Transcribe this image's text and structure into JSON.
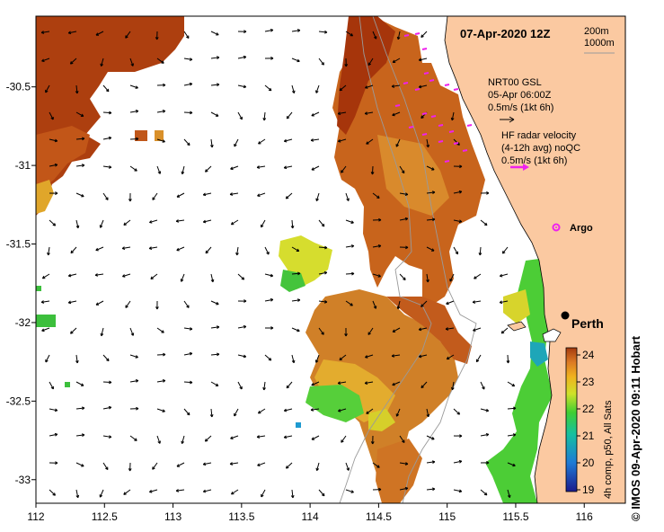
{
  "title": "07-Apr-2020 12Z",
  "depth_labels": [
    "200m",
    "1000m"
  ],
  "model_label": "NRT00 GSL",
  "model_time": "05-Apr 06:00Z",
  "model_scale": "0.5m/s (1kt 6h)",
  "radar_label_line1": "HF radar velocity",
  "radar_label_line2": "(4-12h avg) noQC",
  "radar_scale": "0.5m/s (1kt 6h)",
  "argo_label": "Argo",
  "city_label": "Perth",
  "colorbar_title": "4h comp, p50, All Sats",
  "credit": "© IMOS 09-Apr-2020 09:11 Hobart",
  "colors": {
    "land": "#fbc9a1",
    "warm": "#b0420c",
    "mid": "#d6822a",
    "cool": "#38c43a",
    "argo": "#ee22ee",
    "radar_arrow": "#ee22ee"
  },
  "chart_data": {
    "type": "heatmap",
    "variable": "sea surface temperature",
    "xlim": [
      112,
      116.3
    ],
    "ylim": [
      -33.15,
      -30.05
    ],
    "x_ticks": [
      112,
      112.5,
      113,
      113.5,
      114,
      114.5,
      115,
      115.5,
      116
    ],
    "x_tick_labels": [
      "112",
      "112.5",
      "113",
      "113.5",
      "114",
      "114.5",
      "115",
      "115.5",
      "116"
    ],
    "y_ticks": [
      -30.5,
      -31,
      -31.5,
      -32,
      -32.5,
      -33
    ],
    "y_tick_labels": [
      "-30.5",
      "-31",
      "-31.5",
      "-32",
      "-32.5",
      "-33"
    ],
    "colorbar": {
      "min": 19,
      "max": 24,
      "ticks": [
        19,
        20,
        21,
        22,
        23,
        24
      ],
      "tick_labels": [
        "19",
        "20",
        "21",
        "22",
        "23",
        "24"
      ]
    },
    "markers": [
      {
        "name": "Perth",
        "lon": 115.86,
        "lat": -31.95
      },
      {
        "name": "Argo",
        "lon": 115.75,
        "lat": -31.4
      }
    ]
  }
}
